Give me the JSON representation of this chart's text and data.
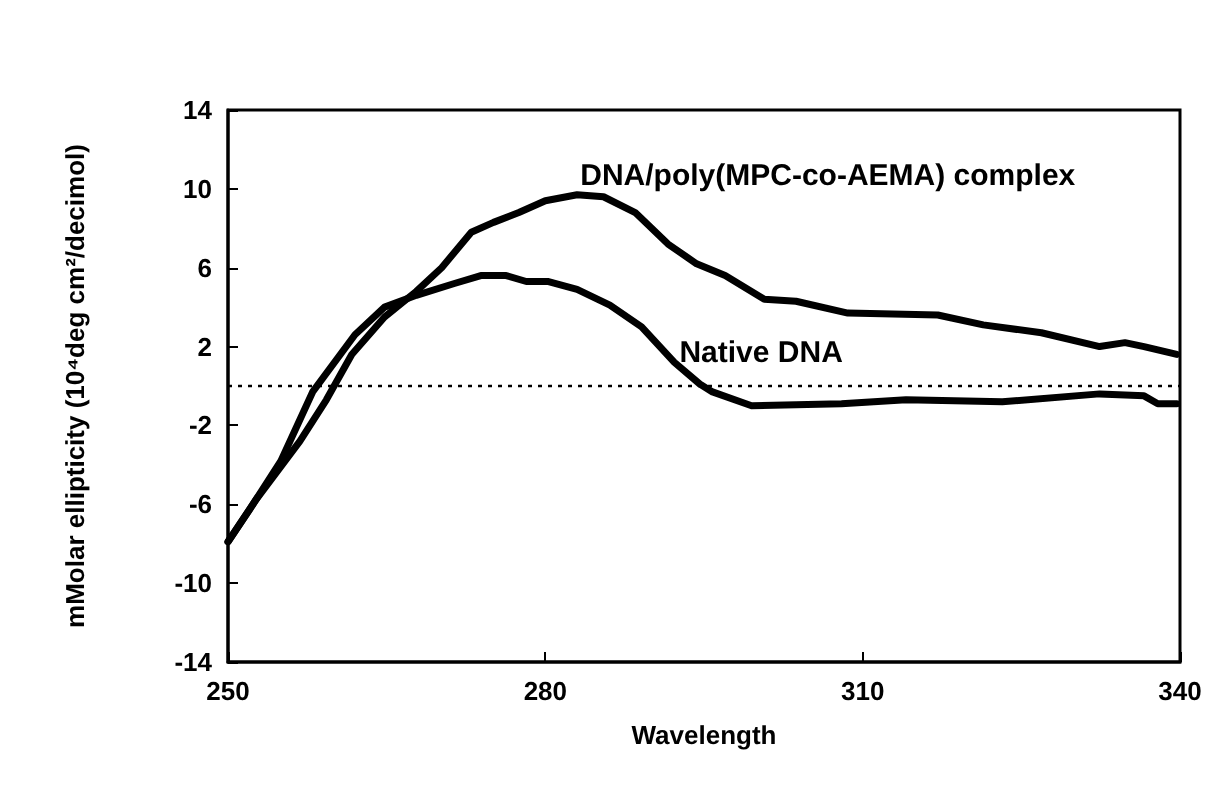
{
  "chart_data": {
    "type": "line",
    "xlabel": "Wavelength",
    "ylabel": "mMolar ellipticity (10⁴deg cm²/decimol)",
    "xlim": [
      250,
      340
    ],
    "xticks": [
      250,
      280,
      310,
      340
    ],
    "ylim": [
      -14,
      14
    ],
    "yticks": [
      -14,
      -10,
      -6,
      -2,
      2,
      6,
      10,
      14
    ],
    "grid": false,
    "legend": false,
    "marker": "none",
    "line_style": "solid",
    "series": [
      {
        "name": "DNA/poly(MPC-co-AEMA) complex",
        "color": "#000000",
        "x": [
          250,
          252.6,
          256.8,
          259.3,
          261.7,
          264.8,
          267.8,
          270.2,
          273,
          275.1,
          277.5,
          280,
          283,
          285.5,
          288.5,
          291.6,
          294.3,
          297,
          300.7,
          303.7,
          308.6,
          317.1,
          321.4,
          326.9,
          332.4,
          334.8,
          336.6,
          339.7
        ],
        "values": [
          -7.9,
          -5.8,
          -2.8,
          -0.7,
          1.6,
          3.5,
          4.8,
          6,
          7.8,
          8.3,
          8.8,
          9.4,
          9.7,
          9.6,
          8.8,
          7.2,
          6.2,
          5.6,
          4.4,
          4.3,
          3.7,
          3.6,
          3.1,
          2.7,
          2,
          2.2,
          2,
          1.6
        ]
      },
      {
        "name": "Native DNA",
        "color": "#000000",
        "x": [
          250,
          252,
          255,
          258,
          262,
          264.8,
          267.8,
          271.4,
          273.9,
          276.3,
          278.2,
          280.3,
          283,
          286.1,
          289.1,
          292.2,
          294.6,
          295.8,
          299.5,
          308,
          314.1,
          323.2,
          332.4,
          336.6,
          337.9,
          339.7
        ],
        "values": [
          -7.9,
          -6.3,
          -3.8,
          -0.3,
          2.6,
          4,
          4.6,
          5.2,
          5.6,
          5.6,
          5.3,
          5.3,
          4.9,
          4.1,
          3,
          1.2,
          0.1,
          -0.3,
          -1,
          -0.9,
          -0.7,
          -0.8,
          -0.4,
          -0.5,
          -0.9,
          -0.9
        ]
      }
    ],
    "ref_lines": [
      {
        "axis": "y",
        "value": 0,
        "color": "#000000",
        "line_style": "dotted"
      }
    ]
  }
}
